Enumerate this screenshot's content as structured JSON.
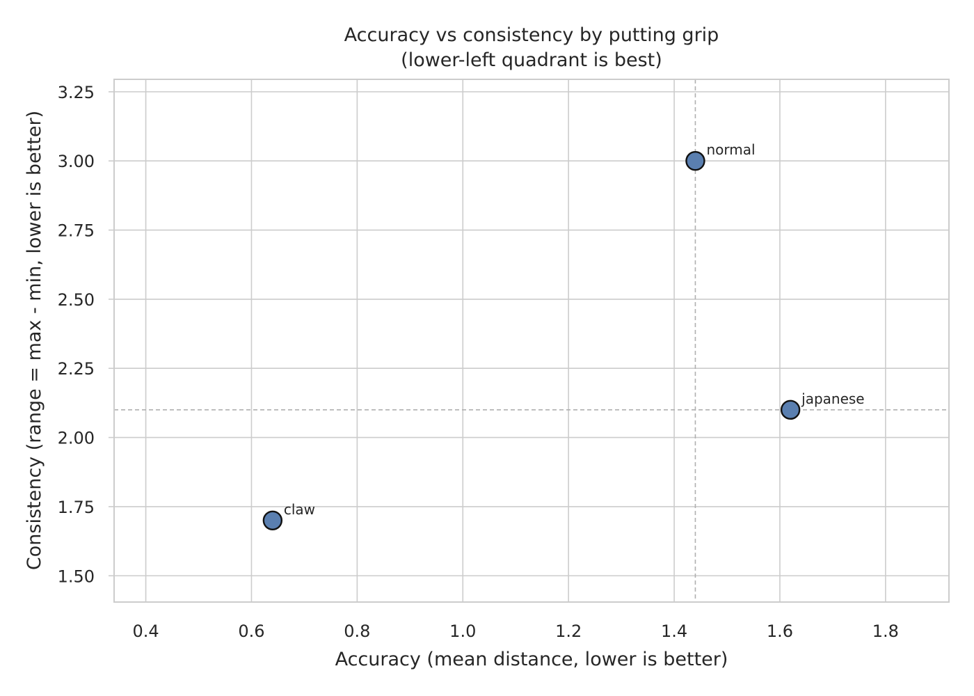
{
  "chart_data": {
    "type": "scatter",
    "title": "Accuracy vs consistency by putting grip",
    "subtitle": "(lower-left quadrant is best)",
    "xlabel": "Accuracy (mean distance, lower is better)",
    "ylabel": "Consistency (range = max - min, lower is better)",
    "xlim": [
      0.34,
      1.92
    ],
    "ylim": [
      1.405,
      3.295
    ],
    "xticks": [
      0.4,
      0.6,
      0.8,
      1.0,
      1.2,
      1.4,
      1.6,
      1.8
    ],
    "xtick_labels": [
      "0.4",
      "0.6",
      "0.8",
      "1.0",
      "1.2",
      "1.4",
      "1.6",
      "1.8"
    ],
    "yticks": [
      1.5,
      1.75,
      2.0,
      2.25,
      2.5,
      2.75,
      3.0,
      3.25
    ],
    "ytick_labels": [
      "1.50",
      "1.75",
      "2.00",
      "2.25",
      "2.50",
      "2.75",
      "3.00",
      "3.25"
    ],
    "grid": true,
    "reference_lines": {
      "x": 1.44,
      "y": 2.1
    },
    "points": [
      {
        "label": "claw",
        "x": 0.64,
        "y": 1.7
      },
      {
        "label": "normal",
        "x": 1.44,
        "y": 3.0
      },
      {
        "label": "japanese",
        "x": 1.62,
        "y": 2.1
      }
    ],
    "colors": {
      "marker_fill": "#5a7fb0",
      "marker_edge": "#111111",
      "grid": "#cccccc",
      "reference": "#b0b0b0"
    }
  }
}
